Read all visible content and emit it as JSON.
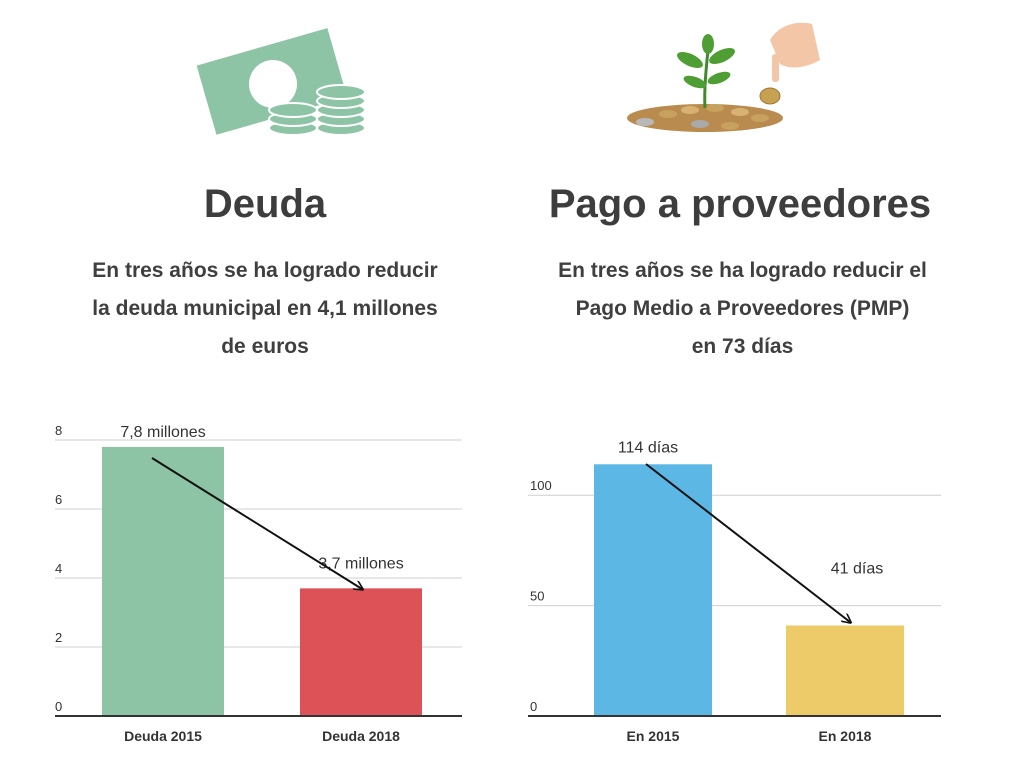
{
  "sections": [
    {
      "icon": "money-bill-coins-icon",
      "title": "Deuda",
      "subtitle_lines": [
        "En tres años se ha logrado reducir",
        "la deuda municipal en 4,1 millones",
        "de euros"
      ]
    },
    {
      "icon": "plant-coins-hand-icon",
      "title": "Pago a proveedores",
      "subtitle_lines": [
        "En tres años se ha logrado reducir el",
        "Pago Medio a Proveedores (PMP)",
        "en 73 días"
      ]
    }
  ],
  "chart_data": [
    {
      "type": "bar",
      "categories": [
        "Deuda 2015",
        "Deuda 2018"
      ],
      "values": [
        7.8,
        3.7
      ],
      "data_labels": [
        "7,8 millones",
        "3,7 millones"
      ],
      "colors": [
        "#8ec4a6",
        "#dd5257"
      ],
      "ylim": [
        0,
        8
      ],
      "yticks": [
        0,
        2,
        4,
        6,
        8
      ],
      "grid": true,
      "title": "",
      "xlabel": "",
      "ylabel": ""
    },
    {
      "type": "bar",
      "categories": [
        "En 2015",
        "En 2018"
      ],
      "values": [
        114,
        41
      ],
      "data_labels": [
        "114 días",
        "41 días"
      ],
      "colors": [
        "#5db7e5",
        "#eecb69"
      ],
      "ylim": [
        0,
        125
      ],
      "yticks": [
        0,
        50,
        100
      ],
      "grid": true,
      "title": "",
      "xlabel": "",
      "ylabel": ""
    }
  ]
}
